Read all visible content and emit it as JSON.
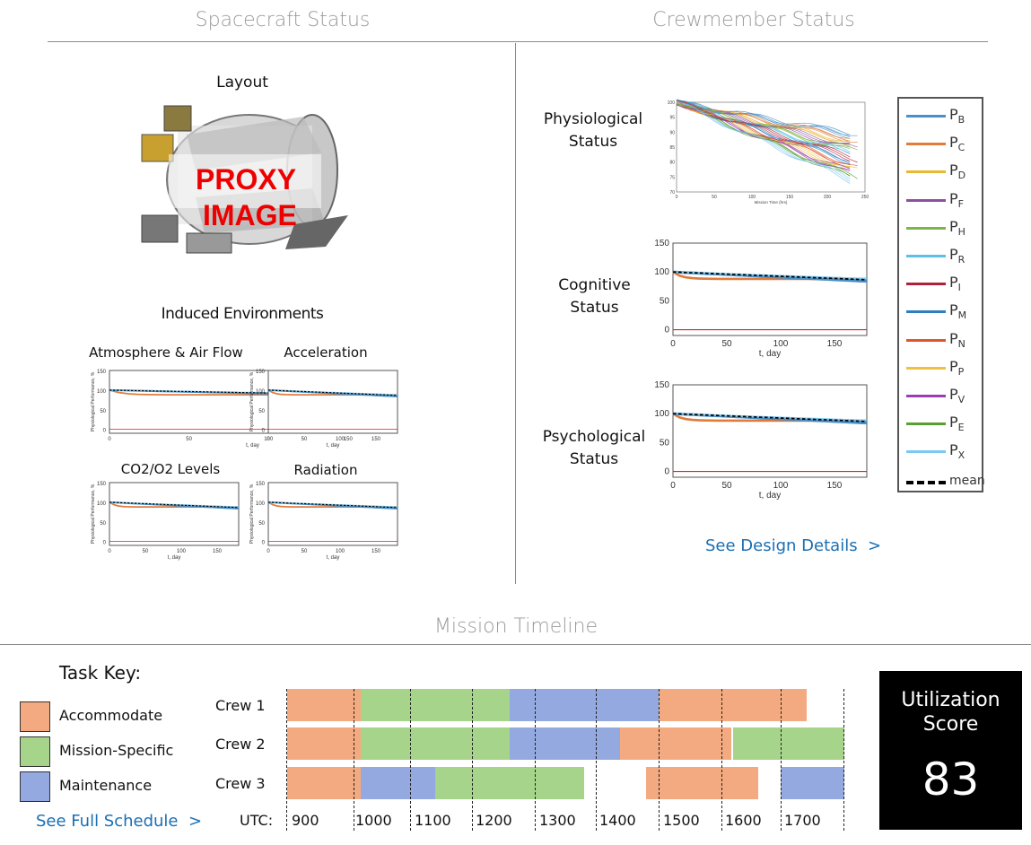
{
  "sections": {
    "spacecraft": "Spacecraft Status",
    "crew": "Crewmember Status",
    "timeline": "Mission Timeline"
  },
  "spacecraft": {
    "layout_label": "Layout",
    "proxy_text_1": "PROXY",
    "proxy_text_2": "IMAGE",
    "induced_label": "Induced Environments",
    "env_plots": [
      {
        "title": "Atmosphere & Air Flow"
      },
      {
        "title": "Acceleration"
      },
      {
        "title": "CO2/O2 Levels"
      },
      {
        "title": "Radiation"
      }
    ],
    "small_plot": {
      "ylabel": "Physiological Performance, %",
      "xlabel": "t, day",
      "yticks": [
        "150",
        "100",
        "50",
        "0"
      ],
      "xticks": [
        "0",
        "50",
        "100",
        "150"
      ]
    }
  },
  "crew": {
    "physio_label_1": "Physiological",
    "physio_label_2": "Status",
    "cognitive_label_1": "Cognitive",
    "cognitive_label_2": "Status",
    "psych_label_1": "Psychological",
    "psych_label_2": "Status",
    "physio_plot": {
      "xlabel": "Mission Time (hrs)",
      "yticks": [
        "100",
        "95",
        "90",
        "85",
        "80",
        "75",
        "70"
      ],
      "xticks": [
        "0",
        "50",
        "100",
        "150",
        "200",
        "250"
      ]
    },
    "status_plot": {
      "xlabel": "t, day",
      "yticks": [
        "150",
        "100",
        "50",
        "0"
      ],
      "xticks": [
        "0",
        "50",
        "100",
        "150"
      ]
    },
    "legend": [
      {
        "base": "P",
        "sub": "B",
        "color": "#4a90c8"
      },
      {
        "base": "P",
        "sub": "C",
        "color": "#e07b3c"
      },
      {
        "base": "P",
        "sub": "D",
        "color": "#e8b830"
      },
      {
        "base": "P",
        "sub": "F",
        "color": "#8e4fa0"
      },
      {
        "base": "P",
        "sub": "H",
        "color": "#7ab648"
      },
      {
        "base": "P",
        "sub": "R",
        "color": "#5bc0e8"
      },
      {
        "base": "P",
        "sub": "I",
        "color": "#b0203a"
      },
      {
        "base": "P",
        "sub": "M",
        "color": "#2f7fbf"
      },
      {
        "base": "P",
        "sub": "N",
        "color": "#e0552a"
      },
      {
        "base": "P",
        "sub": "P",
        "color": "#f0c040"
      },
      {
        "base": "P",
        "sub": "V",
        "color": "#9a3fb0"
      },
      {
        "base": "P",
        "sub": "E",
        "color": "#5aa030"
      },
      {
        "base": "P",
        "sub": "X",
        "color": "#7cc8f0"
      },
      {
        "base": "mean",
        "sub": "",
        "color": "#000000"
      }
    ],
    "details_link": "See Design Details  >"
  },
  "timeline": {
    "task_key_label": "Task Key:",
    "keys": [
      {
        "label": "Accommodate",
        "color": "#f4aa80"
      },
      {
        "label": "Mission-Specific",
        "color": "#a6d48a"
      },
      {
        "label": "Maintenance",
        "color": "#94a9df"
      }
    ],
    "schedule_link": "See Full Schedule  >",
    "utc_label": "UTC:",
    "utc_ticks": [
      "900",
      "1000",
      "1100",
      "1200",
      "1300",
      "1400",
      "1500",
      "1600",
      "1700"
    ],
    "crews": [
      {
        "name": "Crew 1"
      },
      {
        "name": "Crew 2"
      },
      {
        "name": "Crew 3"
      }
    ],
    "score_label_1": "Utilization",
    "score_label_2": "Score",
    "score_value": "83"
  }
}
